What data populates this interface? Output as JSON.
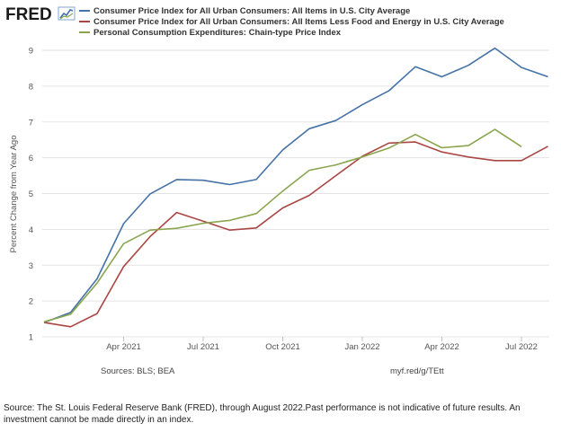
{
  "brand": {
    "logo_text": "FRED"
  },
  "chart_data": {
    "type": "line",
    "x": [
      "2021-01",
      "2021-02",
      "2021-03",
      "2021-04",
      "2021-05",
      "2021-06",
      "2021-07",
      "2021-08",
      "2021-09",
      "2021-10",
      "2021-11",
      "2021-12",
      "2022-01",
      "2022-02",
      "2022-03",
      "2022-04",
      "2022-05",
      "2022-06",
      "2022-07",
      "2022-08"
    ],
    "series": [
      {
        "name": "Consumer Price Index for All Urban Consumers: All Items in U.S. City Average",
        "color": "#4572a7",
        "values": [
          1.4,
          1.68,
          2.62,
          4.16,
          4.99,
          5.39,
          5.37,
          5.25,
          5.39,
          6.22,
          6.81,
          7.04,
          7.48,
          7.87,
          8.54,
          8.26,
          8.58,
          9.06,
          8.52,
          8.26
        ]
      },
      {
        "name": "Consumer Price Index for All Urban Consumers: All Items Less Food and Energy in U.S. City Average",
        "color": "#aa4643",
        "values": [
          1.4,
          1.28,
          1.65,
          2.96,
          3.8,
          4.47,
          4.23,
          3.98,
          4.04,
          4.6,
          4.95,
          5.5,
          6.04,
          6.41,
          6.44,
          6.16,
          6.02,
          5.92,
          5.92,
          6.32
        ]
      },
      {
        "name": "Personal Consumption Expenditures: Chain-type Price Index",
        "color": "#89a54e",
        "values": [
          1.42,
          1.63,
          2.5,
          3.6,
          3.98,
          4.03,
          4.17,
          4.25,
          4.44,
          5.07,
          5.65,
          5.8,
          6.02,
          6.27,
          6.65,
          6.28,
          6.34,
          6.79,
          6.31,
          null
        ]
      }
    ],
    "ylabel": "Percent Change from Year Ago",
    "ylim": [
      1,
      9
    ],
    "yticks": [
      "1",
      "2",
      "3",
      "4",
      "5",
      "6",
      "7",
      "8",
      "9"
    ],
    "xticks": [
      {
        "x": "2021-04",
        "label": "Apr 2021"
      },
      {
        "x": "2021-07",
        "label": "Jul 2021"
      },
      {
        "x": "2021-10",
        "label": "Oct 2021"
      },
      {
        "x": "2022-01",
        "label": "Jan 2022"
      },
      {
        "x": "2022-04",
        "label": "Apr 2022"
      },
      {
        "x": "2022-07",
        "label": "Jul 2022"
      }
    ],
    "grid": true,
    "legend_placement": "top"
  },
  "footer": {
    "sources": "Sources: BLS; BEA",
    "short_url": "myf.red/g/TEtt"
  },
  "disclaimer": "Source: The St. Louis Federal Reserve Bank (FRED), through August 2022.Past performance is not indicative of future results. An investment cannot be made directly in an index."
}
